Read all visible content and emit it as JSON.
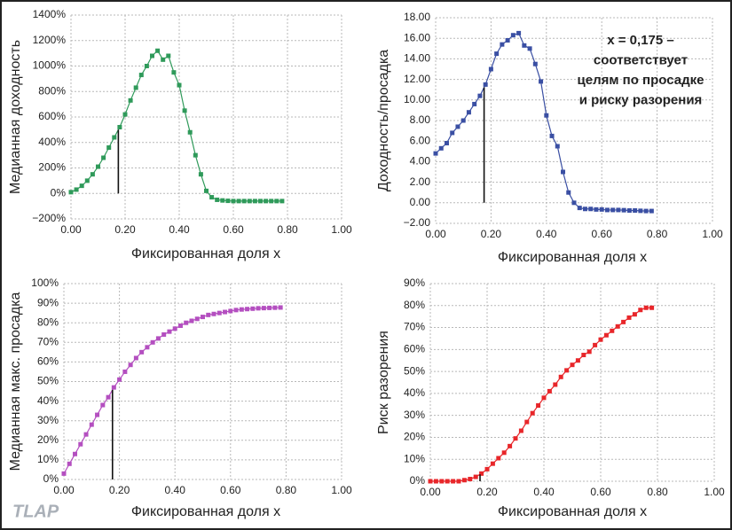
{
  "logo": "TLAP",
  "chart_data": [
    {
      "type": "line",
      "ylabel": "Медианная доходность",
      "xlabel": "Фиксированная доля x",
      "color": "#2f9a5a",
      "marker_x": 0.175,
      "x": [
        0,
        0.02,
        0.04,
        0.06,
        0.08,
        0.1,
        0.12,
        0.14,
        0.16,
        0.18,
        0.2,
        0.22,
        0.24,
        0.26,
        0.28,
        0.3,
        0.32,
        0.34,
        0.36,
        0.38,
        0.4,
        0.42,
        0.44,
        0.46,
        0.48,
        0.5,
        0.52,
        0.54,
        0.56,
        0.58,
        0.6,
        0.62,
        0.64,
        0.66,
        0.68,
        0.7,
        0.72,
        0.74,
        0.76,
        0.78
      ],
      "values": [
        10,
        30,
        60,
        100,
        150,
        210,
        280,
        360,
        440,
        520,
        620,
        730,
        830,
        930,
        1000,
        1080,
        1120,
        1050,
        1080,
        950,
        850,
        650,
        480,
        300,
        150,
        20,
        -30,
        -50,
        -55,
        -58,
        -60,
        -60,
        -60,
        -60,
        -60,
        -60,
        -60,
        -60,
        -60,
        -60
      ],
      "xlim": [
        0,
        1
      ],
      "xticks": [
        {
          "value": 0,
          "label": "0.00"
        },
        {
          "value": 0.2,
          "label": "0.20"
        },
        {
          "value": 0.4,
          "label": "0.40"
        },
        {
          "value": 0.6,
          "label": "0.60"
        },
        {
          "value": 0.8,
          "label": "0.80"
        },
        {
          "value": 1,
          "label": "1.00"
        }
      ],
      "ylim": [
        -200,
        1400
      ],
      "yticks": [
        {
          "value": -200,
          "label": "−200%"
        },
        {
          "value": 0,
          "label": "0%"
        },
        {
          "value": 200,
          "label": "200%"
        },
        {
          "value": 400,
          "label": "400%"
        },
        {
          "value": 600,
          "label": "600%"
        },
        {
          "value": 800,
          "label": "800%"
        },
        {
          "value": 1000,
          "label": "1000%"
        },
        {
          "value": 1200,
          "label": "1200%"
        },
        {
          "value": 1400,
          "label": "1400%"
        }
      ],
      "grid": true
    },
    {
      "type": "line",
      "ylabel": "Доходность/просадка",
      "xlabel": "Фиксированная доля x",
      "color": "#3a4fa3",
      "marker_x": 0.175,
      "annotation": [
        "x = 0,175 –",
        "соответствует",
        "целям по просадке",
        "и риску разорения"
      ],
      "x": [
        0,
        0.02,
        0.04,
        0.06,
        0.08,
        0.1,
        0.12,
        0.14,
        0.16,
        0.18,
        0.2,
        0.22,
        0.24,
        0.26,
        0.28,
        0.3,
        0.32,
        0.34,
        0.36,
        0.38,
        0.4,
        0.42,
        0.44,
        0.46,
        0.48,
        0.5,
        0.52,
        0.54,
        0.56,
        0.58,
        0.6,
        0.62,
        0.64,
        0.66,
        0.68,
        0.7,
        0.72,
        0.74,
        0.76,
        0.78
      ],
      "values": [
        4.8,
        5.3,
        5.8,
        6.8,
        7.4,
        8.0,
        8.8,
        9.6,
        10.4,
        11.5,
        13.0,
        14.5,
        15.4,
        15.8,
        16.3,
        16.5,
        15.3,
        15.0,
        13.5,
        11.8,
        8.5,
        6.5,
        5.5,
        3.0,
        1.0,
        0.0,
        -0.5,
        -0.6,
        -0.6,
        -0.65,
        -0.65,
        -0.7,
        -0.7,
        -0.7,
        -0.72,
        -0.75,
        -0.75,
        -0.78,
        -0.8,
        -0.8
      ],
      "xlim": [
        0,
        1
      ],
      "xticks": [
        {
          "value": 0,
          "label": "0.00"
        },
        {
          "value": 0.2,
          "label": "0.20"
        },
        {
          "value": 0.4,
          "label": "0.40"
        },
        {
          "value": 0.6,
          "label": "0.60"
        },
        {
          "value": 0.8,
          "label": "0.80"
        },
        {
          "value": 1,
          "label": "1.00"
        }
      ],
      "ylim": [
        -2,
        18
      ],
      "yticks": [
        {
          "value": -2,
          "label": "−2.00"
        },
        {
          "value": 0,
          "label": "0.00"
        },
        {
          "value": 2,
          "label": "2.00"
        },
        {
          "value": 4,
          "label": "4.00"
        },
        {
          "value": 6,
          "label": "6.00"
        },
        {
          "value": 8,
          "label": "8.00"
        },
        {
          "value": 10,
          "label": "10.00"
        },
        {
          "value": 12,
          "label": "12.00"
        },
        {
          "value": 14,
          "label": "14.00"
        },
        {
          "value": 16,
          "label": "16.00"
        },
        {
          "value": 18,
          "label": "18.00"
        }
      ],
      "grid": true
    },
    {
      "type": "line",
      "ylabel": "Медианная макс. просадка",
      "xlabel": "Фиксированная доля x",
      "color": "#b44fc0",
      "marker_x": 0.175,
      "x": [
        0,
        0.02,
        0.04,
        0.06,
        0.08,
        0.1,
        0.12,
        0.14,
        0.16,
        0.18,
        0.2,
        0.22,
        0.24,
        0.26,
        0.28,
        0.3,
        0.32,
        0.34,
        0.36,
        0.38,
        0.4,
        0.42,
        0.44,
        0.46,
        0.48,
        0.5,
        0.52,
        0.54,
        0.56,
        0.58,
        0.6,
        0.62,
        0.64,
        0.66,
        0.68,
        0.7,
        0.72,
        0.74,
        0.76,
        0.78
      ],
      "values": [
        3,
        8,
        13,
        18,
        23,
        28,
        33,
        38,
        42,
        47,
        51,
        55,
        58.5,
        62,
        65,
        67.5,
        70,
        72,
        74,
        75.5,
        77,
        78.5,
        80,
        81,
        82,
        83,
        84,
        84.5,
        85,
        85.5,
        86,
        86.5,
        86.8,
        87,
        87.2,
        87.4,
        87.5,
        87.6,
        87.7,
        87.8
      ],
      "xlim": [
        0,
        1
      ],
      "xticks": [
        {
          "value": 0,
          "label": "0.00"
        },
        {
          "value": 0.2,
          "label": "0.20"
        },
        {
          "value": 0.4,
          "label": "0.40"
        },
        {
          "value": 0.6,
          "label": "0.60"
        },
        {
          "value": 0.8,
          "label": "0.80"
        },
        {
          "value": 1,
          "label": "1.00"
        }
      ],
      "ylim": [
        0,
        100
      ],
      "yticks": [
        {
          "value": 0,
          "label": "0%"
        },
        {
          "value": 10,
          "label": "10%"
        },
        {
          "value": 20,
          "label": "20%"
        },
        {
          "value": 30,
          "label": "30%"
        },
        {
          "value": 40,
          "label": "40%"
        },
        {
          "value": 50,
          "label": "50%"
        },
        {
          "value": 60,
          "label": "60%"
        },
        {
          "value": 70,
          "label": "70%"
        },
        {
          "value": 80,
          "label": "80%"
        },
        {
          "value": 90,
          "label": "90%"
        },
        {
          "value": 100,
          "label": "100%"
        }
      ],
      "grid": true
    },
    {
      "type": "line",
      "ylabel": "Риск разорения",
      "xlabel": "Фиксированная доля x",
      "color": "#e8262a",
      "marker_x": 0.175,
      "x": [
        0,
        0.02,
        0.04,
        0.06,
        0.08,
        0.1,
        0.12,
        0.14,
        0.16,
        0.18,
        0.2,
        0.22,
        0.24,
        0.26,
        0.28,
        0.3,
        0.32,
        0.34,
        0.36,
        0.38,
        0.4,
        0.42,
        0.44,
        0.46,
        0.48,
        0.5,
        0.52,
        0.54,
        0.56,
        0.58,
        0.6,
        0.62,
        0.64,
        0.66,
        0.68,
        0.7,
        0.72,
        0.74,
        0.76,
        0.78
      ],
      "values": [
        0,
        0,
        0,
        0,
        0,
        0,
        0.5,
        1,
        2,
        3.5,
        5.5,
        8,
        10.5,
        13,
        16,
        19.5,
        23,
        27,
        31,
        34.5,
        38,
        41,
        44,
        47.5,
        50.5,
        53,
        55,
        57.5,
        59,
        62,
        64.5,
        66.5,
        68.5,
        70.5,
        72.5,
        74.5,
        76,
        78,
        79,
        79
      ],
      "xlim": [
        0,
        1
      ],
      "xticks": [
        {
          "value": 0,
          "label": "0.00"
        },
        {
          "value": 0.2,
          "label": "0.20"
        },
        {
          "value": 0.4,
          "label": "0.40"
        },
        {
          "value": 0.6,
          "label": "0.60"
        },
        {
          "value": 0.8,
          "label": "0.80"
        },
        {
          "value": 1,
          "label": "1.00"
        }
      ],
      "ylim": [
        0,
        90
      ],
      "yticks": [
        {
          "value": 0,
          "label": "0%"
        },
        {
          "value": 10,
          "label": "10%"
        },
        {
          "value": 20,
          "label": "20%"
        },
        {
          "value": 30,
          "label": "30%"
        },
        {
          "value": 40,
          "label": "40%"
        },
        {
          "value": 50,
          "label": "50%"
        },
        {
          "value": 60,
          "label": "60%"
        },
        {
          "value": 70,
          "label": "70%"
        },
        {
          "value": 80,
          "label": "80%"
        },
        {
          "value": 90,
          "label": "90%"
        }
      ],
      "grid": true
    }
  ]
}
